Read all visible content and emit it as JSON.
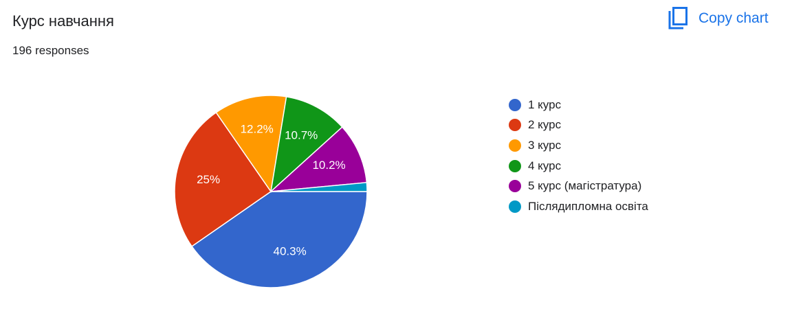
{
  "header": {
    "title": "Курс навчання",
    "responses": "196 responses",
    "copy_label": "Copy chart",
    "copy_icon": "copy-icon"
  },
  "chart_data": {
    "type": "pie",
    "categories": [
      "1 курс",
      "2 курс",
      "3 курс",
      "4 курс",
      "5 курс (магістратура)",
      "Післядипломна освіта"
    ],
    "values": [
      40.3,
      25,
      12.2,
      10.7,
      10.2,
      1.5
    ],
    "labels": [
      "40.3%",
      "25%",
      "12.2%",
      "10.7%",
      "10.2%",
      ""
    ],
    "colors": [
      "#3366cc",
      "#dc3912",
      "#ff9900",
      "#109618",
      "#990099",
      "#0099c6"
    ],
    "legend_position": "right"
  }
}
